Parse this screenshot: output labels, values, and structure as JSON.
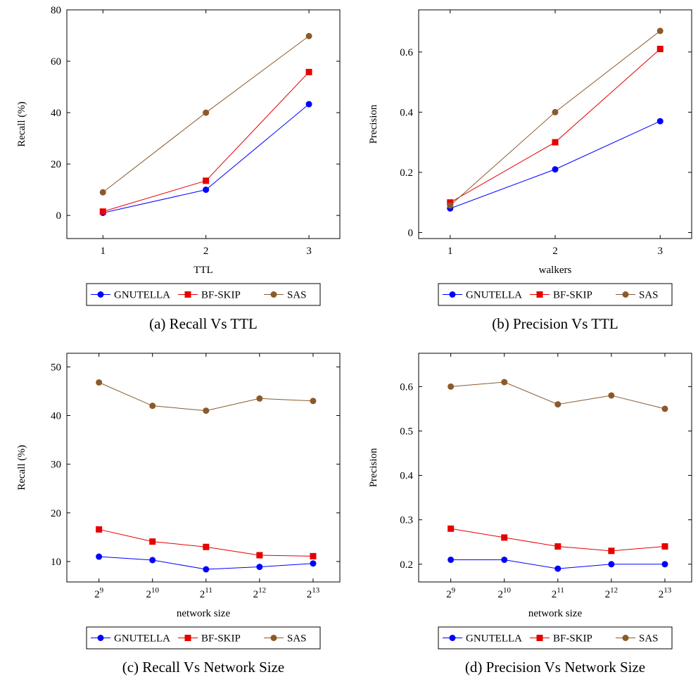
{
  "legend_labels": [
    "GNUTELLA",
    "BF-SKIP",
    "SAS"
  ],
  "colors": {
    "GNUTELLA": "#0000ff",
    "BF-SKIP": "#e60000",
    "SAS": "#8b5a2b"
  },
  "markers": {
    "GNUTELLA": "circle",
    "BF-SKIP": "square",
    "SAS": "circle"
  },
  "chart_data": [
    {
      "type": "line",
      "caption": "(a) Recall Vs TTL",
      "xlabel": "TTL",
      "ylabel": "Recall (%)",
      "x_tick_labels": [
        "1",
        "2",
        "3"
      ],
      "y_ticks": [
        0,
        20,
        40,
        60,
        80
      ],
      "y_tick_labels": [
        "0",
        "20",
        "40",
        "60",
        "80"
      ],
      "ylim": [
        -9,
        80
      ],
      "xlim": [
        0.65,
        3.3
      ],
      "grid": false,
      "legend_position": "below",
      "x": [
        1,
        2,
        3
      ],
      "series": [
        {
          "name": "GNUTELLA",
          "values": [
            1,
            10,
            43.3
          ]
        },
        {
          "name": "BF-SKIP",
          "values": [
            1.5,
            13.5,
            55.8
          ]
        },
        {
          "name": "SAS",
          "values": [
            9,
            40,
            69.8
          ]
        }
      ]
    },
    {
      "type": "line",
      "caption": "(b) Precision Vs TTL",
      "xlabel": "walkers",
      "ylabel": "Precision",
      "x_tick_labels": [
        "1",
        "2",
        "3"
      ],
      "y_ticks": [
        0,
        0.2,
        0.4,
        0.6
      ],
      "y_tick_labels": [
        "0",
        "0.2",
        "0.4",
        "0.6"
      ],
      "ylim": [
        -0.02,
        0.74
      ],
      "xlim": [
        0.7,
        3.3
      ],
      "grid": false,
      "legend_position": "below",
      "x": [
        1,
        2,
        3
      ],
      "series": [
        {
          "name": "GNUTELLA",
          "values": [
            0.08,
            0.21,
            0.37
          ]
        },
        {
          "name": "BF-SKIP",
          "values": [
            0.1,
            0.3,
            0.61
          ]
        },
        {
          "name": "SAS",
          "values": [
            0.09,
            0.4,
            0.67
          ]
        }
      ]
    },
    {
      "type": "line",
      "caption": "(c) Recall Vs Network Size",
      "xlabel": "network size",
      "ylabel": "Recall (%)",
      "x_tick_labels": [
        [
          "2",
          "9"
        ],
        [
          "2",
          "10"
        ],
        [
          "2",
          "11"
        ],
        [
          "2",
          "12"
        ],
        [
          "2",
          "13"
        ]
      ],
      "y_ticks": [
        10,
        20,
        30,
        40,
        50
      ],
      "y_tick_labels": [
        "10",
        "20",
        "30",
        "40",
        "50"
      ],
      "ylim": [
        5.8,
        52.8
      ],
      "xlim": [
        0.4,
        5.5
      ],
      "grid": false,
      "legend_position": "below",
      "x": [
        1,
        2,
        3,
        4,
        5
      ],
      "series": [
        {
          "name": "GNUTELLA",
          "values": [
            11,
            10.3,
            8.4,
            8.9,
            9.6
          ]
        },
        {
          "name": "BF-SKIP",
          "values": [
            16.6,
            14.1,
            13,
            11.3,
            11.1
          ]
        },
        {
          "name": "SAS",
          "values": [
            46.8,
            42,
            41,
            43.5,
            43
          ]
        }
      ]
    },
    {
      "type": "line",
      "caption": "(d) Precision Vs Network Size",
      "xlabel": "network size",
      "ylabel": "Precision",
      "x_tick_labels": [
        [
          "2",
          "9"
        ],
        [
          "2",
          "10"
        ],
        [
          "2",
          "11"
        ],
        [
          "2",
          "12"
        ],
        [
          "2",
          "13"
        ]
      ],
      "y_ticks": [
        0.2,
        0.3,
        0.4,
        0.5,
        0.6
      ],
      "y_tick_labels": [
        "0.2",
        "0.3",
        "0.4",
        "0.5",
        "0.6"
      ],
      "ylim": [
        0.16,
        0.675
      ],
      "xlim": [
        0.4,
        5.5
      ],
      "grid": false,
      "legend_position": "below",
      "x": [
        1,
        2,
        3,
        4,
        5
      ],
      "series": [
        {
          "name": "GNUTELLA",
          "values": [
            0.21,
            0.21,
            0.19,
            0.2,
            0.2
          ]
        },
        {
          "name": "BF-SKIP",
          "values": [
            0.28,
            0.26,
            0.24,
            0.23,
            0.24
          ]
        },
        {
          "name": "SAS",
          "values": [
            0.6,
            0.61,
            0.56,
            0.58,
            0.55
          ]
        }
      ]
    }
  ]
}
